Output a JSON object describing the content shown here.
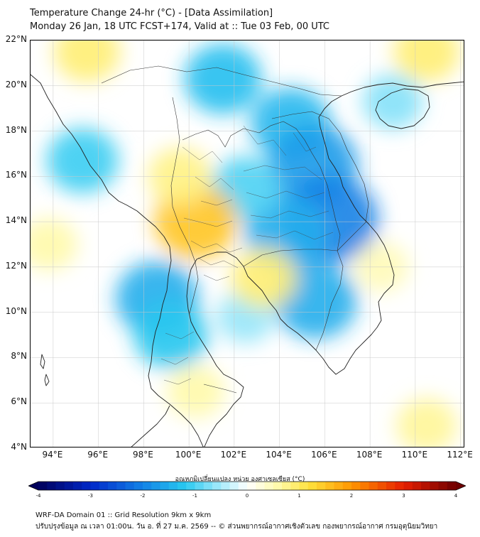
{
  "header": {
    "title_line1": "Temperature Change 24-hr (°C) - [Data Assimilation]",
    "title_line2": "Monday 26 Jan, 18 UTC FCST+174, Valid at :: Tue 03 Feb, 00 UTC"
  },
  "map": {
    "lat_labels": [
      "22°N",
      "20°N",
      "18°N",
      "16°N",
      "14°N",
      "12°N",
      "10°N",
      "8°N",
      "6°N",
      "4°N"
    ],
    "lon_labels": [
      "94°E",
      "96°E",
      "98°E",
      "100°E",
      "102°E",
      "104°E",
      "106°E",
      "108°E",
      "110°E",
      "112°E"
    ],
    "lat_range": [
      4,
      22
    ],
    "lon_range": [
      93,
      112.2
    ],
    "blobs": [
      {
        "lon": 101.5,
        "lat": 20.3,
        "value": -1.3
      },
      {
        "lon": 104.5,
        "lat": 18.3,
        "value": -1.4
      },
      {
        "lon": 105.5,
        "lat": 16.5,
        "value": -1.7
      },
      {
        "lon": 106.2,
        "lat": 14.1,
        "value": -2.0
      },
      {
        "lon": 104.3,
        "lat": 13.5,
        "value": -1.5
      },
      {
        "lon": 102.5,
        "lat": 15.5,
        "value": -1.0
      },
      {
        "lon": 105.6,
        "lat": 10.5,
        "value": -1.5
      },
      {
        "lon": 98.6,
        "lat": 10.6,
        "value": -1.5
      },
      {
        "lon": 99.2,
        "lat": 9.0,
        "value": -1.2
      },
      {
        "lon": 102.5,
        "lat": 9.8,
        "value": -0.6
      },
      {
        "lon": 95.3,
        "lat": 16.7,
        "value": -1.1
      },
      {
        "lon": 109.0,
        "lat": 19.3,
        "value": -0.7
      },
      {
        "lon": 100.3,
        "lat": 14.0,
        "value": 1.5
      },
      {
        "lon": 99.6,
        "lat": 16.0,
        "value": 0.8
      },
      {
        "lon": 103.3,
        "lat": 11.5,
        "value": 0.9
      },
      {
        "lon": 100.3,
        "lat": 6.5,
        "value": 0.6
      },
      {
        "lon": 95.5,
        "lat": 21.5,
        "value": 0.9
      },
      {
        "lon": 110.5,
        "lat": 21.5,
        "value": 0.9
      },
      {
        "lon": 108.5,
        "lat": 12.0,
        "value": 0.5
      },
      {
        "lon": 93.8,
        "lat": 13.0,
        "value": 0.6
      },
      {
        "lon": 110.5,
        "lat": 5.0,
        "value": 0.7
      }
    ]
  },
  "colorbar": {
    "title": "อุณหภูมิเปลี่ยนแปลง หน่วย องศาเซลเซียส (°C)",
    "min": -4,
    "max": 4,
    "tick_labels": [
      "-4",
      "-3",
      "-2",
      "-1",
      "0",
      "1",
      "2",
      "3",
      "4"
    ]
  },
  "footer": {
    "line1": "WRF-DA Domain 01 :: Grid Resolution 9km x 9km",
    "line2": "ปรับปรุงข้อมูล ณ เวลา 01:00น. วัน อ. ที่ 27 ม.ค. 2569 -- © ส่วนพยากรณ์อากาศเชิงตัวเลข กองพยากรณ์อากาศ กรมอุตุนิยมวิทยา"
  }
}
